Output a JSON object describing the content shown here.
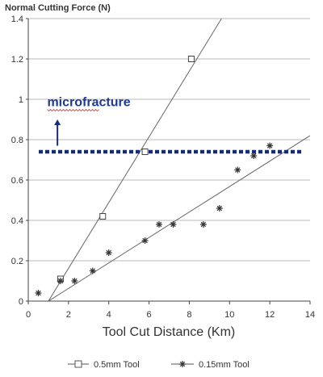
{
  "chart_data": {
    "type": "scatter",
    "title": "",
    "ylabel": "Normal Cutting Force (N)",
    "xlabel": "Tool Cut Distance (Km)",
    "xlim": [
      0,
      14
    ],
    "ylim": [
      0,
      1.4
    ],
    "xticks": [
      0,
      2,
      4,
      6,
      8,
      10,
      12,
      14
    ],
    "yticks": [
      0,
      0.2,
      0.4,
      0.6,
      0.8,
      1,
      1.2,
      1.4
    ],
    "grid": "horizontal",
    "legend_position": "bottom",
    "series": [
      {
        "name": "0.5mm Tool",
        "marker": "square",
        "color": "#555555",
        "points": [
          [
            1.6,
            0.11
          ],
          [
            3.7,
            0.42
          ],
          [
            5.8,
            0.74
          ],
          [
            8.1,
            1.2
          ]
        ],
        "fit_line": [
          [
            1.0,
            0.0
          ],
          [
            9.6,
            1.4
          ]
        ]
      },
      {
        "name": "0.15mm Tool",
        "marker": "asterisk",
        "color": "#555555",
        "points": [
          [
            0.5,
            0.04
          ],
          [
            1.6,
            0.1
          ],
          [
            2.3,
            0.1
          ],
          [
            3.2,
            0.15
          ],
          [
            4.0,
            0.24
          ],
          [
            5.8,
            0.3
          ],
          [
            6.5,
            0.38
          ],
          [
            7.2,
            0.38
          ],
          [
            8.7,
            0.38
          ],
          [
            9.5,
            0.46
          ],
          [
            10.4,
            0.65
          ],
          [
            11.2,
            0.72
          ],
          [
            12.0,
            0.77
          ]
        ],
        "fit_line": [
          [
            1.0,
            0.0
          ],
          [
            14.0,
            0.82
          ]
        ]
      }
    ],
    "threshold": {
      "y": 0.74,
      "color": "#1a2a7a",
      "style": "dotted"
    },
    "annotations": [
      {
        "text": "microfracture",
        "x": 0.5,
        "y": 0.99
      }
    ],
    "arrow": {
      "x": 1.45,
      "y_from": 0.77,
      "y_to": 0.9,
      "color": "#1a2a7a"
    }
  }
}
